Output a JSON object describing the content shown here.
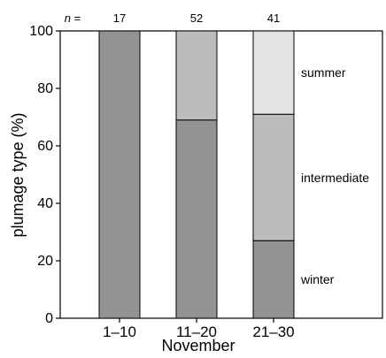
{
  "chart_data": {
    "type": "bar",
    "stacked": true,
    "categories": [
      "1–10",
      "11–20",
      "21–30"
    ],
    "n_label": "n =",
    "n_values": [
      "17",
      "52",
      "41"
    ],
    "series": [
      {
        "name": "winter",
        "values": [
          100,
          69,
          27
        ],
        "color": "#939393"
      },
      {
        "name": "intermediate",
        "values": [
          0,
          31,
          44
        ],
        "color": "#bcbcbc"
      },
      {
        "name": "summer",
        "values": [
          0,
          0,
          29
        ],
        "color": "#e4e4e4"
      }
    ],
    "xlabel": "November",
    "ylabel": "plumage type (%)",
    "ylim": [
      0,
      100
    ],
    "yticks": [
      0,
      20,
      40,
      60,
      80,
      100
    ],
    "grid": false,
    "legend": "right, aligned with segments of last bar"
  }
}
